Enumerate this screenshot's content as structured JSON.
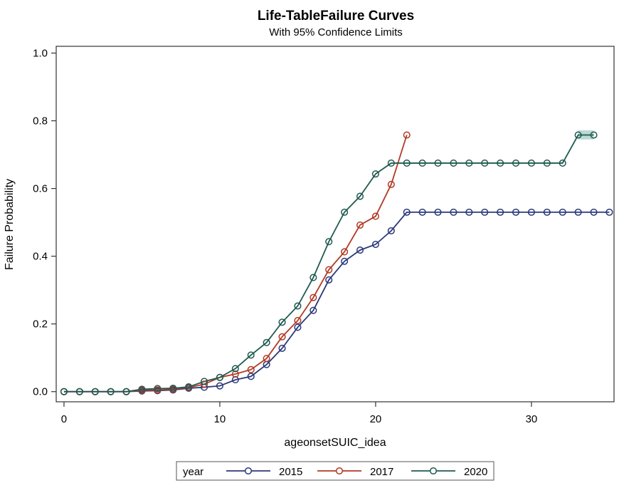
{
  "chart_data": {
    "type": "line",
    "title": "Life-TableFailure Curves",
    "subtitle": "With 95% Confidence Limits",
    "xlabel": "ageonsetSUIC_idea",
    "ylabel": "Failure Probability",
    "xlim": [
      -0.5,
      35.3
    ],
    "ylim": [
      -0.03,
      1.02
    ],
    "xticks": [
      0,
      10,
      20,
      30
    ],
    "yticks": [
      0.0,
      0.2,
      0.4,
      0.6,
      0.8,
      1.0
    ],
    "xtick_labels": [
      "0",
      "10",
      "20",
      "30"
    ],
    "ytick_labels": [
      "0.0",
      "0.2",
      "0.4",
      "0.6",
      "0.8",
      "1.0"
    ],
    "legend": {
      "title": "year",
      "position": "bottom"
    },
    "series": [
      {
        "name": "2015",
        "color": "#2b3a7a",
        "x": [
          0,
          1,
          2,
          3,
          4,
          5,
          6,
          7,
          8,
          9,
          10,
          11,
          12,
          13,
          14,
          15,
          16,
          17,
          18,
          19,
          20,
          21,
          22,
          23,
          24,
          25,
          26,
          27,
          28,
          29,
          30,
          31,
          32,
          33,
          34,
          35
        ],
        "y": [
          0,
          0,
          0,
          0,
          0,
          0.002,
          0.003,
          0.005,
          0.01,
          0.013,
          0.017,
          0.035,
          0.045,
          0.08,
          0.128,
          0.19,
          0.24,
          0.33,
          0.385,
          0.418,
          0.435,
          0.475,
          0.53,
          0.53,
          0.53,
          0.53,
          0.53,
          0.53,
          0.53,
          0.53,
          0.53,
          0.53,
          0.53,
          0.53,
          0.53,
          0.53
        ]
      },
      {
        "name": "2017",
        "color": "#b23a24",
        "x": [
          0,
          1,
          2,
          3,
          4,
          5,
          6,
          7,
          8,
          9,
          10,
          11,
          12,
          13,
          14,
          15,
          16,
          17,
          18,
          19,
          20,
          21,
          22
        ],
        "y": [
          0,
          0,
          0,
          0,
          0,
          0.004,
          0.005,
          0.007,
          0.012,
          0.022,
          0.042,
          0.052,
          0.065,
          0.098,
          0.162,
          0.21,
          0.278,
          0.36,
          0.413,
          0.492,
          0.518,
          0.612,
          0.758
        ]
      },
      {
        "name": "2020",
        "color": "#1f5a50",
        "x": [
          0,
          1,
          2,
          3,
          4,
          5,
          6,
          7,
          8,
          9,
          10,
          11,
          12,
          13,
          14,
          15,
          16,
          17,
          18,
          19,
          20,
          21,
          22,
          23,
          24,
          25,
          26,
          27,
          28,
          29,
          30,
          31,
          32,
          33,
          34
        ],
        "y": [
          0,
          0,
          0,
          0,
          0,
          0.007,
          0.009,
          0.01,
          0.014,
          0.03,
          0.042,
          0.068,
          0.108,
          0.145,
          0.205,
          0.253,
          0.337,
          0.443,
          0.53,
          0.577,
          0.643,
          0.675,
          0.675,
          0.675,
          0.675,
          0.675,
          0.675,
          0.675,
          0.675,
          0.675,
          0.675,
          0.675,
          0.675,
          0.758,
          0.758
        ]
      }
    ],
    "confidence_band": {
      "series": "2020",
      "x": [
        33,
        34
      ],
      "lower": [
        0.745,
        0.745
      ],
      "upper": [
        0.772,
        0.772
      ],
      "color": "#bcd9d4"
    }
  }
}
